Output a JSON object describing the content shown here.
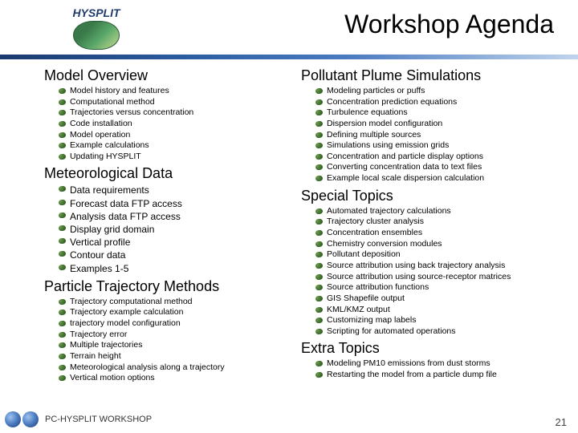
{
  "logo_label": "HYSPLIT",
  "title": "Workshop Agenda",
  "left_sections": [
    {
      "title": "Model Overview",
      "size": "sm",
      "items": [
        "Model history and features",
        "Computational method",
        "Trajectories versus concentration",
        "Code installation",
        "Model operation",
        "Example calculations",
        "Updating HYSPLIT"
      ]
    },
    {
      "title": "Meteorological Data",
      "size": "md",
      "items": [
        "Data requirements",
        "Forecast data FTP access",
        "Analysis data FTP access",
        "Display grid domain",
        "Vertical profile",
        "Contour data",
        "Examples 1-5"
      ]
    },
    {
      "title": "Particle Trajectory Methods",
      "size": "sm",
      "items": [
        "Trajectory computational method",
        "Trajectory example calculation",
        "trajectory model configuration",
        "Trajectory error",
        "Multiple trajectories",
        "Terrain height",
        "Meteorological analysis along a trajectory",
        "Vertical motion options"
      ]
    }
  ],
  "right_sections": [
    {
      "title": "Pollutant Plume Simulations",
      "size": "sm",
      "items": [
        "Modeling particles or puffs",
        "Concentration prediction equations",
        "Turbulence equations",
        "Dispersion model configuration",
        "Defining multiple sources",
        "Simulations using emission grids",
        "Concentration and particle display options",
        "Converting concentration data to text files",
        "Example local scale dispersion calculation"
      ]
    },
    {
      "title": "Special Topics",
      "size": "sm",
      "items": [
        "Automated trajectory calculations",
        "Trajectory cluster analysis",
        "Concentration ensembles",
        "Chemistry conversion modules",
        "Pollutant deposition",
        "Source attribution using back trajectory analysis",
        "Source attribution using source-receptor matrices",
        "Source attribution functions",
        "GIS Shapefile output",
        "KML/KMZ output",
        "Customizing map labels",
        "Scripting for automated operations"
      ]
    },
    {
      "title": "Extra Topics",
      "size": "sm",
      "items": [
        "Modeling PM10 emissions from dust storms",
        "Restarting the model from a particle dump file"
      ]
    }
  ],
  "footer_text": "PC-HYSPLIT WORKSHOP",
  "page_number": "21"
}
